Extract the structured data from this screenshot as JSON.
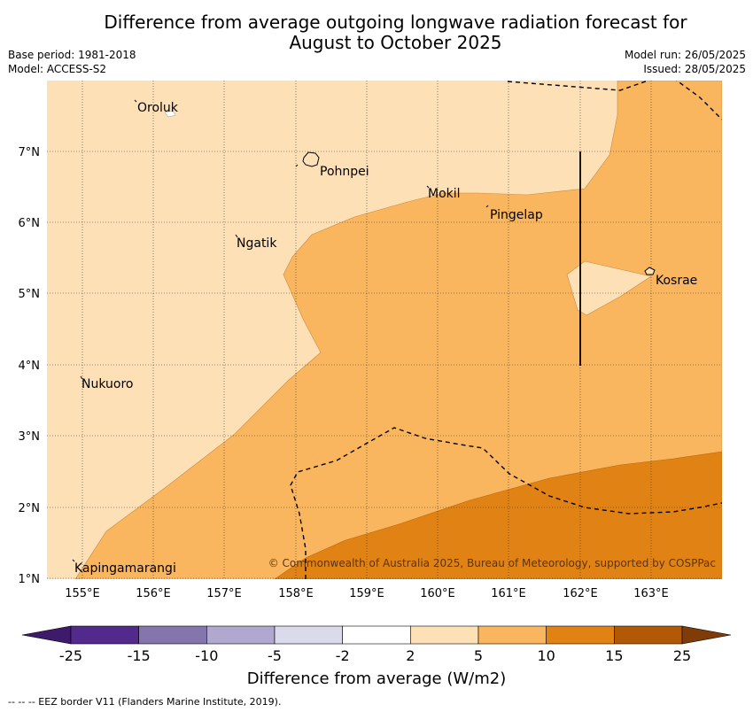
{
  "title_line1": "Difference from average outgoing longwave radiation forecast for",
  "title_line2": "August to October 2025",
  "base_period": "Base period: 1981-2018",
  "model": "Model: ACCESS-S2",
  "model_run": "Model run: 26/05/2025",
  "issued": "Issued: 28/05/2025",
  "lon_labels": [
    "155°E",
    "156°E",
    "157°E",
    "158°E",
    "159°E",
    "160°E",
    "161°E",
    "162°E",
    "163°E"
  ],
  "lat_labels": [
    "7°N",
    "6°N",
    "5°N",
    "4°N",
    "3°N",
    "2°N",
    "1°N"
  ],
  "places": {
    "oroluk": "Oroluk",
    "pohnpei": "Pohnpei",
    "mokil": "Mokil",
    "pingelap": "Pingelap",
    "ngatik": "Ngatik",
    "kosrae": "Kosrae",
    "nukuoro": "Nukuoro",
    "kapingamarangi": "Kapingamarangi"
  },
  "copyright": "© Commonwealth of Australia 2025, Bureau of Meteorology, supported by COSPPac",
  "colorbar": {
    "ticks": [
      "-25",
      "-15",
      "-10",
      "-5",
      "-2",
      "2",
      "5",
      "10",
      "15",
      "25"
    ],
    "colors": [
      "#3e1a6b",
      "#512a8b",
      "#8575ad",
      "#b1a8d0",
      "#dadaea",
      "#ffffff",
      "#fde0b6",
      "#fab65f",
      "#e08214",
      "#b35806",
      "#7f3b08"
    ],
    "label": "Difference from average (W/m2)"
  },
  "footer": "--  --  -- EEZ border V11 (Flanders Marine Institute, 2019)."
}
